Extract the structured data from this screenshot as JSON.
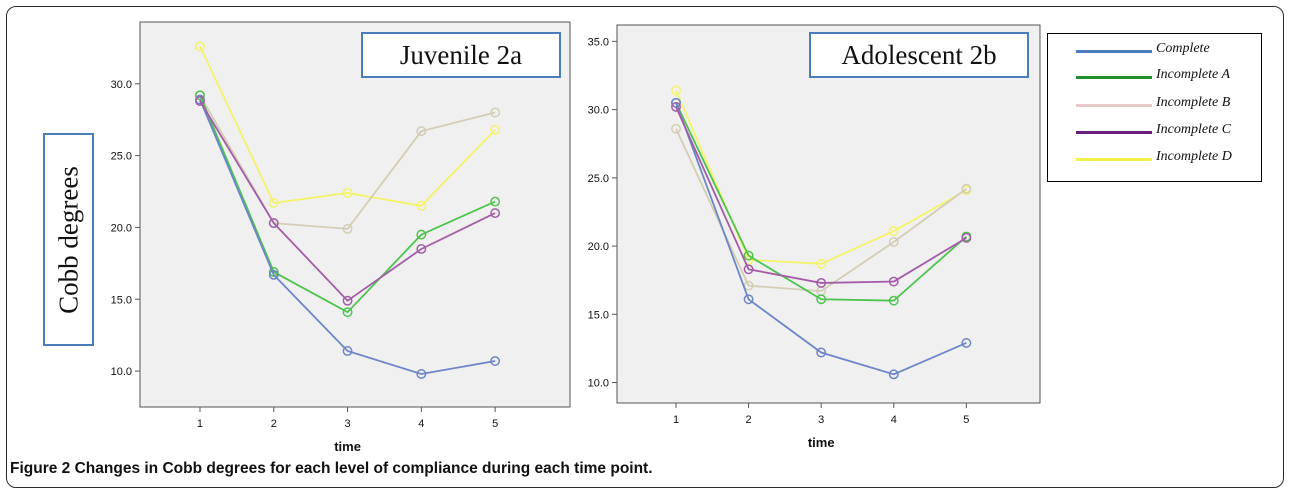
{
  "caption": {
    "label": "Figure 2",
    "text": "Changes in Cobb degrees for each level of compliance during each time point."
  },
  "ylabel": "Cobb degrees",
  "legend": [
    {
      "label": "Complete",
      "color": "#4a7ebb"
    },
    {
      "label": "Incomplete A",
      "color": "#1e8f2e"
    },
    {
      "label": "Incomplete B",
      "color": "#e8c8c8"
    },
    {
      "label": "Incomplete C",
      "color": "#6a1e7a"
    },
    {
      "label": "Incomplete D",
      "color": "#f4f04a"
    }
  ],
  "chart_data": [
    {
      "type": "line",
      "title": "Juvenile 2a",
      "xlabel": "time",
      "ylabel": "",
      "x": [
        1,
        2,
        3,
        4,
        5
      ],
      "xticks": [
        "1",
        "2",
        "3",
        "4",
        "5"
      ],
      "ylim": [
        7.5,
        34.3
      ],
      "yticks": [
        "10.0",
        "15.0",
        "20.0",
        "25.0",
        "30.0"
      ],
      "series": [
        {
          "name": "Incomplete D",
          "color": "#f5f36a",
          "values": [
            32.6,
            21.7,
            22.4,
            21.5,
            26.8
          ]
        },
        {
          "name": "Incomplete B",
          "color": "#d4cdb4",
          "values": [
            29.2,
            20.3,
            19.9,
            26.7,
            28.0
          ]
        },
        {
          "name": "Incomplete A",
          "color": "#4cc44c",
          "values": [
            29.2,
            16.9,
            14.1,
            19.5,
            21.8
          ]
        },
        {
          "name": "Complete",
          "color": "#6d86c8",
          "values": [
            28.9,
            16.7,
            11.4,
            9.8,
            10.7
          ]
        },
        {
          "name": "Incomplete C",
          "color": "#a45ca8",
          "values": [
            28.8,
            20.3,
            14.9,
            18.5,
            21.0
          ]
        }
      ]
    },
    {
      "type": "line",
      "title": "Adolescent 2b",
      "xlabel": "time",
      "ylabel": "",
      "x": [
        1,
        2,
        3,
        4,
        5
      ],
      "xticks": [
        "1",
        "2",
        "3",
        "4",
        "5"
      ],
      "ylim": [
        8.5,
        36.2
      ],
      "yticks": [
        "10.0",
        "15.0",
        "20.0",
        "25.0",
        "30.0",
        "35.0"
      ],
      "series": [
        {
          "name": "Incomplete D",
          "color": "#f5f36a",
          "values": [
            31.4,
            19.0,
            18.7,
            21.1,
            24.1
          ]
        },
        {
          "name": "Incomplete B",
          "color": "#d4cdb4",
          "values": [
            28.6,
            17.1,
            16.7,
            20.3,
            24.2
          ]
        },
        {
          "name": "Incomplete A",
          "color": "#4cc44c",
          "values": [
            30.5,
            19.3,
            16.1,
            16.0,
            20.7
          ]
        },
        {
          "name": "Complete",
          "color": "#6d86c8",
          "values": [
            30.5,
            16.1,
            12.2,
            10.6,
            12.9
          ]
        },
        {
          "name": "Incomplete C",
          "color": "#a45ca8",
          "values": [
            30.2,
            18.3,
            17.3,
            17.4,
            20.6
          ]
        }
      ]
    }
  ]
}
